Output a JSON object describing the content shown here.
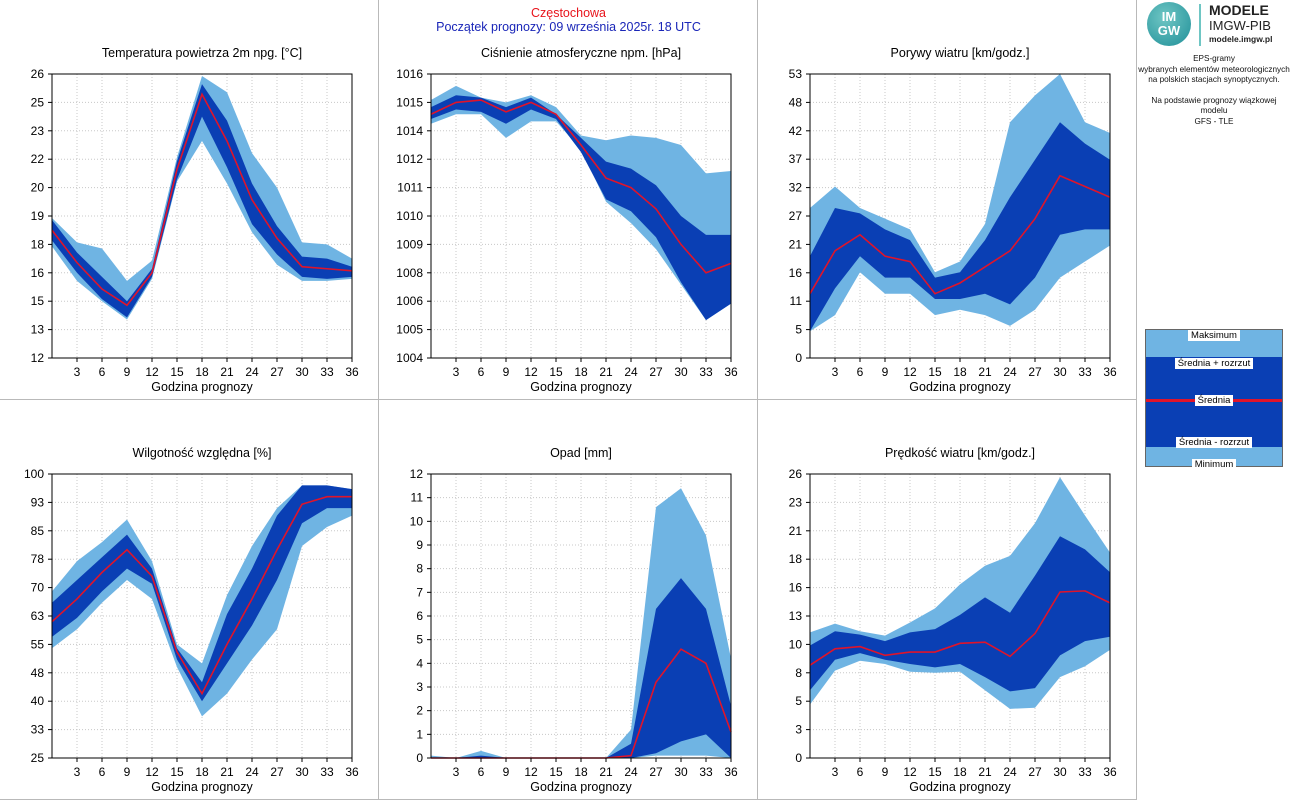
{
  "header": {
    "station": "Częstochowa",
    "forecast_start": "Początek prognozy: 09 września 2025r. 18 UTC"
  },
  "logo": {
    "circle_line1": "IM",
    "circle_line2": "GW",
    "title": "MODELE",
    "subtitle": "IMGW-PIB",
    "url": "modele.imgw.pl"
  },
  "description": {
    "line1": "EPS-gramy",
    "line2": "wybranych elementów meteorologicznych",
    "line3": "na polskich stacjach  synoptycznych.",
    "line4": "Na podstawie prognozy wiązkowej modelu",
    "line5": "GFS - TLE"
  },
  "legend": {
    "max_label": "Maksimum",
    "mean_plus_label": "Średnia + rozrzut",
    "mean_label": "Średnia",
    "mean_minus_label": "Średnia - rozrzut",
    "min_label": "Minimum"
  },
  "colors": {
    "minmax_band": "#6fb4e3",
    "spread_band": "#0a3fb4",
    "mean_line": "#e0142a",
    "grid": "#c8c8c8"
  },
  "chart_data": [
    {
      "type": "area",
      "title": "Temperatura powietrza 2m npg. [°C]",
      "xlabel": "Godzina prognozy",
      "x": [
        0,
        3,
        6,
        9,
        12,
        15,
        18,
        21,
        24,
        27,
        30,
        33,
        36
      ],
      "xticks": [
        "3",
        "6",
        "9",
        "12",
        "15",
        "18",
        "21",
        "24",
        "27",
        "30",
        "33",
        "36"
      ],
      "ylim": [
        12,
        26
      ],
      "yticks": [
        "12",
        "13",
        "15",
        "16",
        "18",
        "19",
        "20",
        "22",
        "23",
        "25",
        "26"
      ],
      "series": [
        {
          "name": "Maksimum",
          "values": [
            18.9,
            17.7,
            17.4,
            15.8,
            16.8,
            21.9,
            25.9,
            25.1,
            22.1,
            20.4,
            17.7,
            17.6,
            16.9
          ]
        },
        {
          "name": "Średnia + rozrzut",
          "values": [
            18.8,
            17.2,
            16.0,
            14.8,
            16.4,
            21.7,
            25.5,
            23.7,
            20.6,
            18.5,
            17.0,
            16.9,
            16.5
          ]
        },
        {
          "name": "Średnia",
          "values": [
            18.3,
            16.7,
            15.4,
            14.6,
            16.2,
            21.3,
            25.0,
            22.7,
            19.8,
            17.9,
            16.5,
            16.4,
            16.3
          ]
        },
        {
          "name": "Średnia - rozrzut",
          "values": [
            17.8,
            16.2,
            14.9,
            14.0,
            16.0,
            20.8,
            23.9,
            21.4,
            18.6,
            17.1,
            16.0,
            15.9,
            16.0
          ]
        },
        {
          "name": "Minimum",
          "values": [
            17.5,
            15.8,
            14.8,
            13.9,
            15.9,
            20.7,
            22.7,
            20.6,
            18.2,
            16.6,
            15.8,
            15.8,
            15.9
          ]
        }
      ]
    },
    {
      "type": "area",
      "title": "Ciśnienie atmosferyczne npm. [hPa]",
      "xlabel": "Godzina prognozy",
      "x": [
        0,
        3,
        6,
        9,
        12,
        15,
        18,
        21,
        24,
        27,
        30,
        33,
        36
      ],
      "xticks": [
        "3",
        "6",
        "9",
        "12",
        "15",
        "18",
        "21",
        "24",
        "27",
        "30",
        "33",
        "36"
      ],
      "ylim": [
        1004,
        1016
      ],
      "yticks": [
        "1004",
        "1005",
        "1006",
        "1008",
        "1009",
        "1010",
        "1011",
        "1012",
        "1014",
        "1015",
        "1016"
      ],
      "series": [
        {
          "name": "Maksimum",
          "values": [
            1014.9,
            1015.5,
            1015.0,
            1014.8,
            1015.1,
            1014.6,
            1013.4,
            1013.2,
            1013.4,
            1013.3,
            1013.0,
            1011.8,
            1011.9
          ]
        },
        {
          "name": "Średnia + rozrzut",
          "values": [
            1014.6,
            1015.1,
            1015.0,
            1014.6,
            1015.0,
            1014.3,
            1013.3,
            1012.3,
            1012.0,
            1011.3,
            1010.0,
            1009.2,
            1009.2
          ]
        },
        {
          "name": "Średnia",
          "values": [
            1014.3,
            1014.8,
            1014.9,
            1014.4,
            1014.8,
            1014.3,
            1013.0,
            1011.6,
            1011.2,
            1010.3,
            1008.8,
            1007.6,
            1008.0
          ]
        },
        {
          "name": "Średnia - rozrzut",
          "values": [
            1014.1,
            1014.5,
            1014.4,
            1013.9,
            1014.5,
            1014.1,
            1012.7,
            1010.7,
            1010.2,
            1009.1,
            1007.2,
            1005.6,
            1006.3
          ]
        },
        {
          "name": "Minimum",
          "values": [
            1013.9,
            1014.3,
            1014.3,
            1013.3,
            1014.0,
            1014.0,
            1012.8,
            1010.6,
            1009.7,
            1008.6,
            1007.1,
            1005.6,
            1006.3
          ]
        }
      ]
    },
    {
      "type": "area",
      "title": "Porywy wiatru [km/godz.]",
      "xlabel": "Godzina prognozy",
      "x": [
        0,
        3,
        6,
        9,
        12,
        15,
        18,
        21,
        24,
        27,
        30,
        33,
        36
      ],
      "xticks": [
        "3",
        "6",
        "9",
        "12",
        "15",
        "18",
        "21",
        "24",
        "27",
        "30",
        "33",
        "36"
      ],
      "ylim": [
        0,
        53
      ],
      "yticks": [
        "0",
        "5",
        "11",
        "16",
        "21",
        "27",
        "32",
        "37",
        "42",
        "48",
        "53"
      ],
      "series": [
        {
          "name": "Maksimum",
          "values": [
            28,
            32,
            28,
            26,
            24,
            16,
            18,
            25,
            44,
            49,
            53,
            44,
            42
          ]
        },
        {
          "name": "Średnia + rozrzut",
          "values": [
            19,
            28,
            27,
            24,
            22,
            15,
            16,
            22,
            30,
            37,
            44,
            40,
            37
          ]
        },
        {
          "name": "Średnia",
          "values": [
            12,
            20,
            23,
            19,
            18,
            12,
            14,
            17,
            20,
            26,
            34,
            32,
            30
          ]
        },
        {
          "name": "Średnia - rozrzut",
          "values": [
            5,
            13,
            19,
            15,
            15,
            11,
            11,
            12,
            10,
            15,
            23,
            24,
            24
          ]
        },
        {
          "name": "Minimum",
          "values": [
            5,
            8,
            16,
            12,
            12,
            8,
            9,
            8,
            6,
            9,
            15,
            18,
            21
          ]
        }
      ]
    },
    {
      "type": "area",
      "title": "Wilgotność względna [%]",
      "xlabel": "Godzina prognozy",
      "x": [
        0,
        3,
        6,
        9,
        12,
        15,
        18,
        21,
        24,
        27,
        30,
        33,
        36
      ],
      "xticks": [
        "3",
        "6",
        "9",
        "12",
        "15",
        "18",
        "21",
        "24",
        "27",
        "30",
        "33",
        "36"
      ],
      "ylim": [
        25,
        100
      ],
      "yticks": [
        "25",
        "33",
        "40",
        "48",
        "55",
        "63",
        "70",
        "78",
        "85",
        "93",
        "100"
      ],
      "series": [
        {
          "name": "Maksimum",
          "values": [
            69,
            77,
            82,
            88,
            77,
            55,
            50,
            68,
            81,
            91,
            97,
            97,
            96
          ]
        },
        {
          "name": "Średnia + rozrzut",
          "values": [
            66,
            72,
            78,
            84,
            75,
            54,
            45,
            63,
            75,
            89,
            97,
            97,
            96
          ]
        },
        {
          "name": "Średnia",
          "values": [
            61,
            67,
            74,
            80,
            73,
            53,
            42,
            55,
            67,
            80,
            92,
            94,
            94
          ]
        },
        {
          "name": "Średnia - rozrzut",
          "values": [
            57,
            62,
            69,
            75,
            71,
            51,
            40,
            50,
            60,
            72,
            87,
            91,
            91
          ]
        },
        {
          "name": "Minimum",
          "values": [
            54,
            59,
            66,
            72,
            67,
            49,
            36,
            42,
            51,
            59,
            81,
            86,
            89
          ]
        }
      ]
    },
    {
      "type": "area",
      "title": "Opad [mm]",
      "xlabel": "Godzina prognozy",
      "x": [
        0,
        3,
        6,
        9,
        12,
        15,
        18,
        21,
        24,
        27,
        30,
        33,
        36
      ],
      "xticks": [
        "3",
        "6",
        "9",
        "12",
        "15",
        "18",
        "21",
        "24",
        "27",
        "30",
        "33",
        "36"
      ],
      "ylim": [
        0,
        12
      ],
      "yticks": [
        "0",
        "1",
        "2",
        "3",
        "4",
        "5",
        "6",
        "7",
        "8",
        "9",
        "10",
        "11",
        "12"
      ],
      "series": [
        {
          "name": "Maksimum",
          "values": [
            0.1,
            0.0,
            0.3,
            0.0,
            0.0,
            0.0,
            0.0,
            0.0,
            1.2,
            10.6,
            11.4,
            9.4,
            4.2
          ]
        },
        {
          "name": "Średnia + rozrzut",
          "values": [
            0.0,
            0.0,
            0.1,
            0.0,
            0.0,
            0.0,
            0.0,
            0.0,
            0.6,
            6.3,
            7.6,
            6.3,
            2.2
          ]
        },
        {
          "name": "Średnia",
          "values": [
            0.0,
            0.0,
            0.0,
            0.0,
            0.0,
            0.0,
            0.0,
            0.0,
            0.1,
            3.2,
            4.6,
            4.0,
            1.1
          ]
        },
        {
          "name": "Średnia - rozrzut",
          "values": [
            0.0,
            0.0,
            0.0,
            0.0,
            0.0,
            0.0,
            0.0,
            0.0,
            0.0,
            0.2,
            0.7,
            1.0,
            0.0
          ]
        },
        {
          "name": "Minimum",
          "values": [
            0.0,
            0.0,
            0.0,
            0.0,
            0.0,
            0.0,
            0.0,
            0.0,
            0.0,
            0.1,
            0.1,
            0.1,
            0.0
          ]
        }
      ]
    },
    {
      "type": "area",
      "title": "Prędkość wiatru [km/godz.]",
      "xlabel": "Godzina prognozy",
      "x": [
        0,
        3,
        6,
        9,
        12,
        15,
        18,
        21,
        24,
        27,
        30,
        33,
        36
      ],
      "xticks": [
        "3",
        "6",
        "9",
        "12",
        "15",
        "18",
        "21",
        "24",
        "27",
        "30",
        "33",
        "36"
      ],
      "ylim": [
        0,
        26
      ],
      "yticks": [
        "0",
        "3",
        "5",
        "8",
        "10",
        "13",
        "16",
        "18",
        "21",
        "23",
        "26"
      ],
      "series": [
        {
          "name": "Maksimum",
          "values": [
            11.5,
            12.3,
            11.6,
            11.2,
            12.4,
            13.7,
            15.9,
            17.6,
            18.5,
            21.5,
            25.7,
            22.2,
            18.8
          ]
        },
        {
          "name": "Średnia + rozrzut",
          "values": [
            10.3,
            11.6,
            11.3,
            10.7,
            11.5,
            11.8,
            13.1,
            14.7,
            13.3,
            16.7,
            20.3,
            19.1,
            17.0
          ]
        },
        {
          "name": "Średnia",
          "values": [
            8.5,
            10.0,
            10.2,
            9.4,
            9.7,
            9.7,
            10.5,
            10.6,
            9.3,
            11.4,
            15.2,
            15.3,
            14.2
          ]
        },
        {
          "name": "Średnia - rozrzut",
          "values": [
            6.2,
            9.0,
            9.6,
            9.0,
            8.6,
            8.3,
            8.6,
            7.4,
            6.1,
            6.4,
            9.4,
            10.7,
            11.1
          ]
        },
        {
          "name": "Minimum",
          "values": [
            4.9,
            8.0,
            8.9,
            8.6,
            7.9,
            7.8,
            7.9,
            6.2,
            4.5,
            4.6,
            7.4,
            8.4,
            9.9
          ]
        }
      ]
    }
  ]
}
